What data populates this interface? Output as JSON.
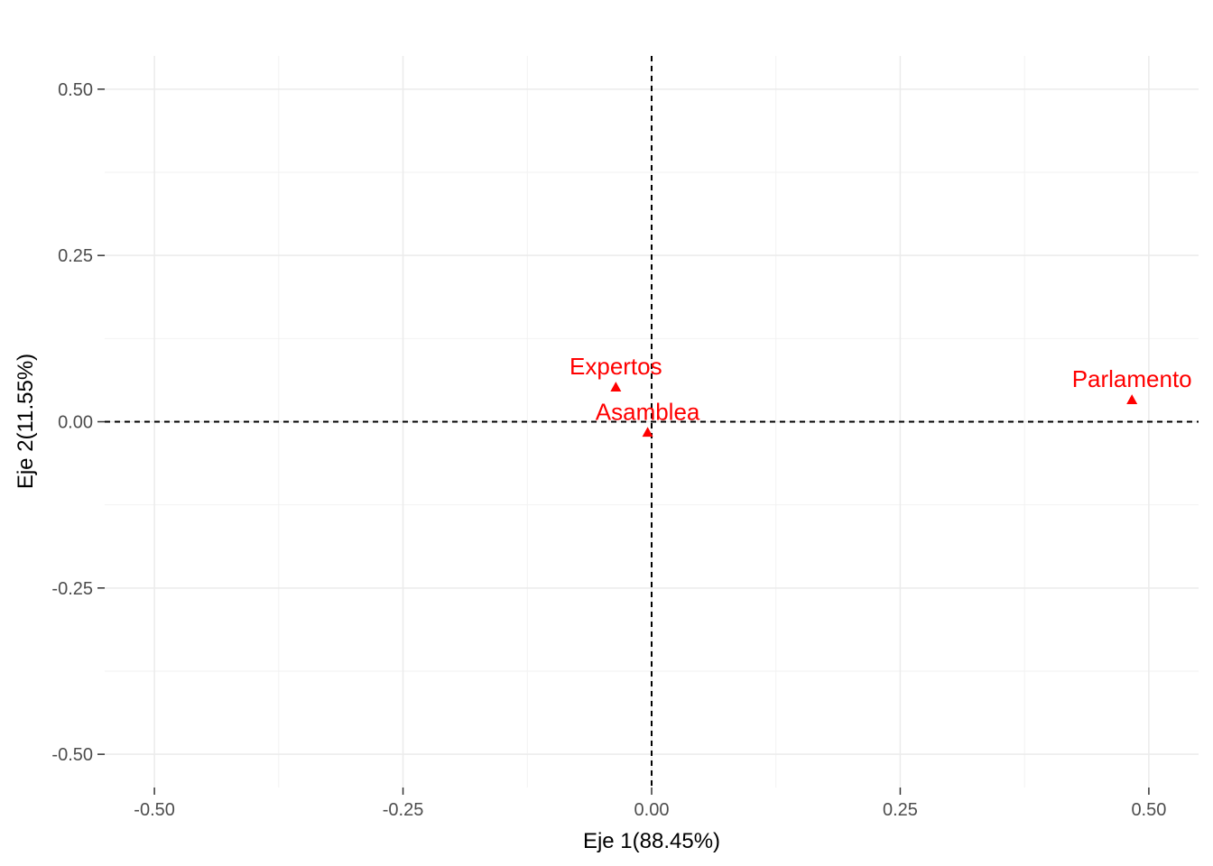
{
  "chart_data": {
    "type": "scatter",
    "title": "",
    "xlabel": "Eje 1(88.45%)",
    "ylabel": "Eje 2(11.55%)",
    "xlim": [
      -0.55,
      0.55
    ],
    "ylim": [
      -0.55,
      0.55
    ],
    "x_ticks": [
      -0.5,
      -0.25,
      0.0,
      0.25,
      0.5
    ],
    "x_tick_labels": [
      "-0.50",
      "-0.25",
      "0.00",
      "0.25",
      "0.50"
    ],
    "y_ticks": [
      -0.5,
      -0.25,
      0.0,
      0.25,
      0.5
    ],
    "y_tick_labels": [
      "-0.50",
      "-0.25",
      "0.00",
      "0.25",
      "0.50"
    ],
    "grid": true,
    "reference_lines": {
      "x": 0,
      "y": 0,
      "style": "dashed"
    },
    "marker": "triangle",
    "point_color": "#ff0000",
    "points": [
      {
        "label": "Expertos",
        "x": -0.036,
        "y": 0.052
      },
      {
        "label": "Asamblea",
        "x": -0.004,
        "y": -0.016
      },
      {
        "label": "Parlamento",
        "x": 0.483,
        "y": 0.033
      }
    ]
  }
}
